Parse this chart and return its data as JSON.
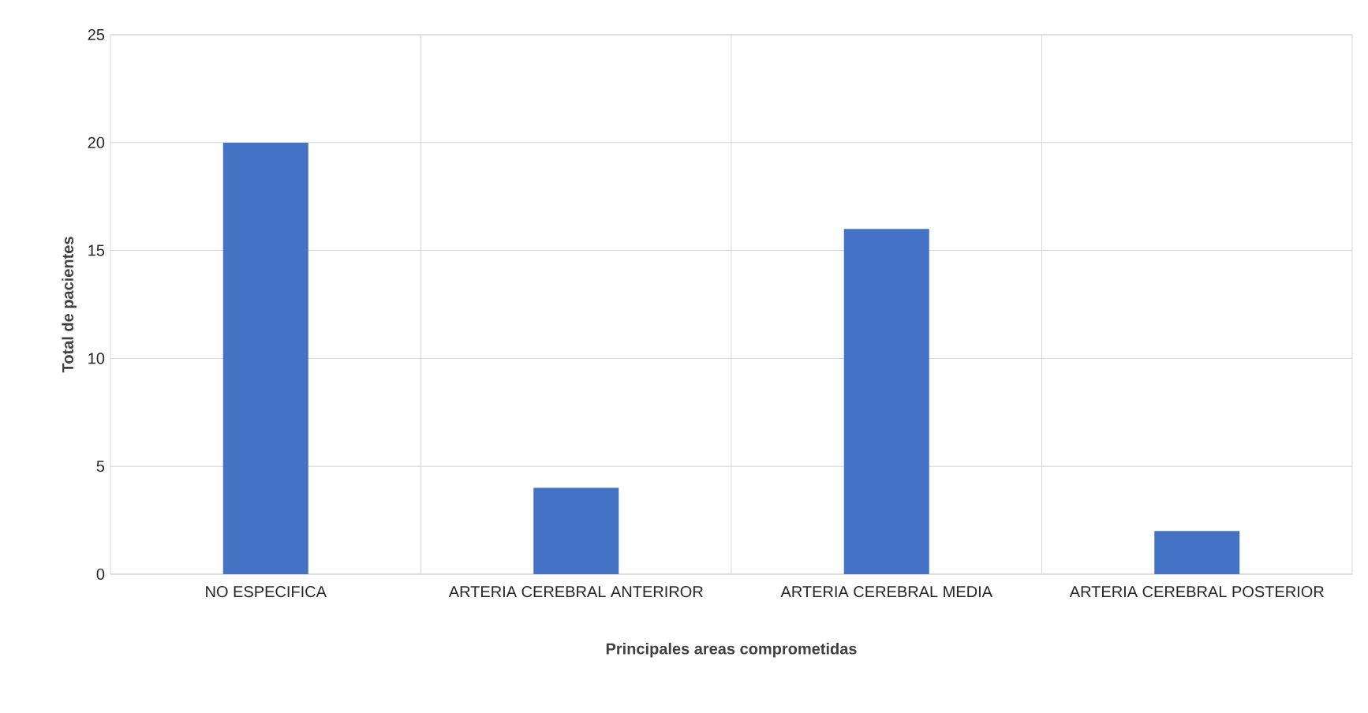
{
  "chart_data": {
    "type": "bar",
    "xlabel": "Principales areas comprometidas",
    "ylabel": "Total de pacientes",
    "categories": [
      "NO ESPECIFICA",
      "ARTERIA CEREBRAL ANTERIROR",
      "ARTERIA CEREBRAL MEDIA",
      "ARTERIA CEREBRAL POSTERIOR"
    ],
    "values": [
      20,
      4,
      16,
      2
    ],
    "color": "#4472c4",
    "ylim": [
      0,
      25
    ],
    "yticks": [
      0,
      5,
      10,
      15,
      20,
      25
    ],
    "grid": true
  }
}
